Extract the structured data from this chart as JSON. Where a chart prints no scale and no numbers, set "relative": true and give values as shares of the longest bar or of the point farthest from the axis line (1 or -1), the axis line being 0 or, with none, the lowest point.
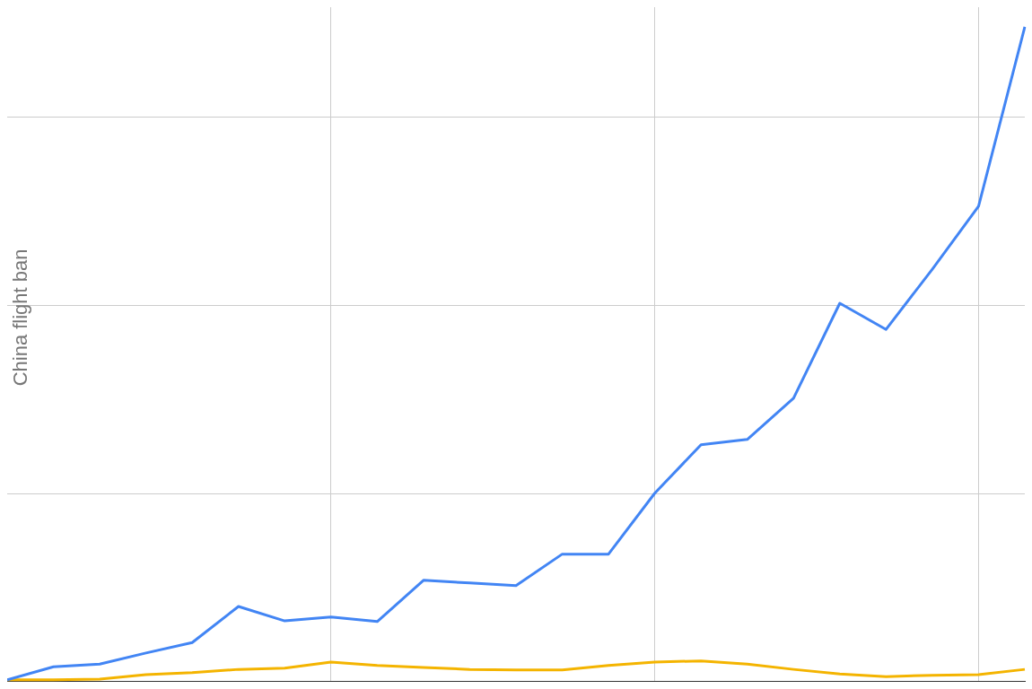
{
  "chart_data": {
    "type": "line",
    "relative": true,
    "grid": true,
    "legend": false,
    "annotations": [
      "China flight ban"
    ],
    "categories": [
      null,
      null,
      null,
      null,
      null,
      null,
      null,
      null,
      null,
      null,
      null,
      null,
      null,
      null,
      null,
      null,
      null,
      null,
      null,
      null,
      null,
      null,
      null
    ],
    "series": [
      {
        "color": "#4285f4",
        "values": [
          0.003,
          0.023,
          0.027,
          0.044,
          0.06,
          0.115,
          0.093,
          0.099,
          0.092,
          0.155,
          0.151,
          0.147,
          0.195,
          0.195,
          0.288,
          0.362,
          0.37,
          0.433,
          0.578,
          0.538,
          0.63,
          0.726,
          1
        ]
      },
      {
        "color": "#f4b400",
        "values": [
          0.003,
          0.003,
          0.004,
          0.011,
          0.014,
          0.019,
          0.021,
          0.03,
          0.025,
          0.022,
          0.019,
          0.018,
          0.018,
          0.025,
          0.03,
          0.032,
          0.027,
          0.019,
          0.012,
          0.008,
          0.01,
          0.011,
          0.019
        ]
      }
    ]
  }
}
